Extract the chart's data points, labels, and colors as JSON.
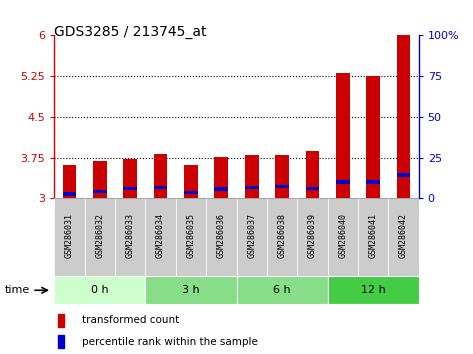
{
  "title": "GDS3285 / 213745_at",
  "samples": [
    "GSM286031",
    "GSM286032",
    "GSM286033",
    "GSM286034",
    "GSM286035",
    "GSM286036",
    "GSM286037",
    "GSM286038",
    "GSM286039",
    "GSM286040",
    "GSM286041",
    "GSM286042"
  ],
  "red_values": [
    3.62,
    3.68,
    3.72,
    3.82,
    3.62,
    3.76,
    3.8,
    3.79,
    3.87,
    5.3,
    5.25,
    6.0
  ],
  "blue_values": [
    3.08,
    3.12,
    3.18,
    3.2,
    3.1,
    3.17,
    3.2,
    3.22,
    3.18,
    3.3,
    3.3,
    3.43
  ],
  "ymin": 3.0,
  "ymax": 6.0,
  "yticks": [
    3.0,
    3.75,
    4.5,
    5.25,
    6.0
  ],
  "ytick_labels": [
    "3",
    "3.75",
    "4.5",
    "5.25",
    "6"
  ],
  "y2ticks": [
    0,
    25,
    50,
    75,
    100
  ],
  "y2tick_labels": [
    "0",
    "25",
    "50",
    "75",
    "100%"
  ],
  "groups": [
    {
      "label": "0 h",
      "start": 0,
      "end": 3,
      "color": "#ccffcc"
    },
    {
      "label": "3 h",
      "start": 3,
      "end": 6,
      "color": "#88dd88"
    },
    {
      "label": "6 h",
      "start": 6,
      "end": 9,
      "color": "#88dd88"
    },
    {
      "label": "12 h",
      "start": 9,
      "end": 12,
      "color": "#44cc44"
    }
  ],
  "bar_color": "#cc0000",
  "blue_color": "#0000cc",
  "bar_width": 0.45,
  "bar_base": 3.0,
  "bg_color": "#ffffff",
  "sample_bg": "#cccccc",
  "legend_red": "transformed count",
  "legend_blue": "percentile rank within the sample"
}
